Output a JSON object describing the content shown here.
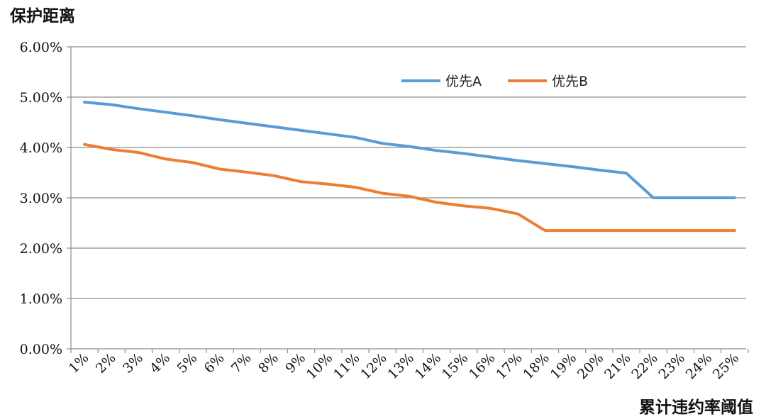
{
  "chart_data": {
    "type": "line",
    "title": "保护距离",
    "xlabel": "累计违约率阈值",
    "ylabel": "",
    "categories": [
      "1%",
      "2%",
      "3%",
      "4%",
      "5%",
      "6%",
      "7%",
      "8%",
      "9%",
      "10%",
      "11%",
      "12%",
      "13%",
      "14%",
      "15%",
      "16%",
      "17%",
      "18%",
      "19%",
      "20%",
      "21%",
      "22%",
      "23%",
      "24%",
      "25%"
    ],
    "ylim": [
      0,
      0.06
    ],
    "yticks": [
      "0.00%",
      "1.00%",
      "2.00%",
      "3.00%",
      "4.00%",
      "5.00%",
      "6.00%"
    ],
    "grid": true,
    "legend_position": "top-right",
    "series": [
      {
        "name": "优先A",
        "color": "#5b9bd5",
        "values": [
          0.049,
          0.0485,
          0.0477,
          0.047,
          0.0463,
          0.0455,
          0.0448,
          0.0441,
          0.0434,
          0.0427,
          0.042,
          0.0408,
          0.0402,
          0.0394,
          0.0388,
          0.0381,
          0.0374,
          0.0368,
          0.0362,
          0.0355,
          0.0349,
          0.03,
          0.03,
          0.03,
          0.03
        ]
      },
      {
        "name": "优先B",
        "color": "#ed7d31",
        "values": [
          0.0406,
          0.0396,
          0.039,
          0.0377,
          0.037,
          0.0357,
          0.0351,
          0.0344,
          0.0332,
          0.0327,
          0.0321,
          0.0309,
          0.0303,
          0.0291,
          0.0284,
          0.0279,
          0.0268,
          0.0235,
          0.0235,
          0.0235,
          0.0235,
          0.0235,
          0.0235,
          0.0235,
          0.0235
        ]
      }
    ]
  }
}
